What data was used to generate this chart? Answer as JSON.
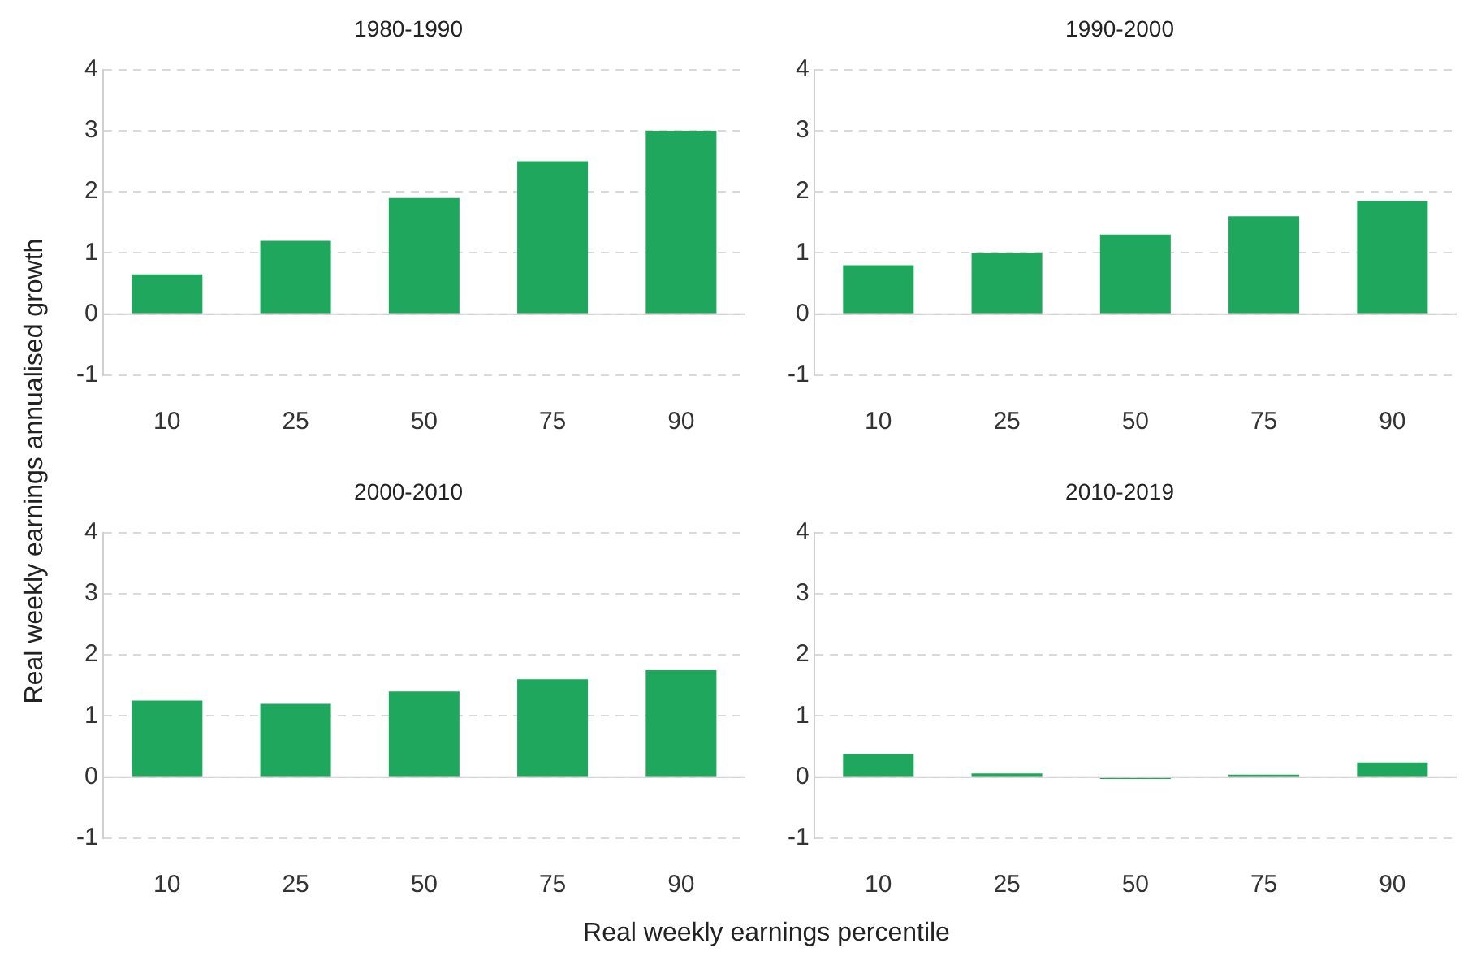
{
  "chart_data": [
    {
      "type": "bar",
      "title": "1980-1990",
      "ylabel": "Real weekly earnings annualised growth",
      "categories": [
        "10",
        "25",
        "50",
        "75",
        "90"
      ],
      "values": [
        0.65,
        1.2,
        1.9,
        2.5,
        3.0
      ],
      "color": "#1fa75e",
      "ylim": [
        -1,
        4
      ],
      "yticks": [
        -1,
        0,
        1,
        2,
        3,
        4
      ],
      "grid": "y"
    },
    {
      "type": "bar",
      "title": "1990-2000",
      "categories": [
        "10",
        "25",
        "50",
        "75",
        "90"
      ],
      "values": [
        0.8,
        1.0,
        1.3,
        1.6,
        1.85
      ],
      "color": "#1fa75e",
      "ylim": [
        -1,
        4
      ],
      "yticks": [
        -1,
        0,
        1,
        2,
        3,
        4
      ],
      "grid": "y"
    },
    {
      "type": "bar",
      "title": "2000-2010",
      "xlabel": "Real weekly earnings percentile",
      "categories": [
        "10",
        "25",
        "50",
        "75",
        "90"
      ],
      "values": [
        1.25,
        1.2,
        1.4,
        1.6,
        1.75
      ],
      "color": "#1fa75e",
      "ylim": [
        -1,
        4
      ],
      "yticks": [
        -1,
        0,
        1,
        2,
        3,
        4
      ],
      "grid": "y"
    },
    {
      "type": "bar",
      "title": "2010-2019",
      "categories": [
        "10",
        "25",
        "50",
        "75",
        "90"
      ],
      "values": [
        0.38,
        0.06,
        -0.03,
        0.04,
        0.24
      ],
      "color": "#1fa75e",
      "ylim": [
        -1,
        4
      ],
      "yticks": [
        -1,
        0,
        1,
        2,
        3,
        4
      ],
      "grid": "y"
    }
  ]
}
